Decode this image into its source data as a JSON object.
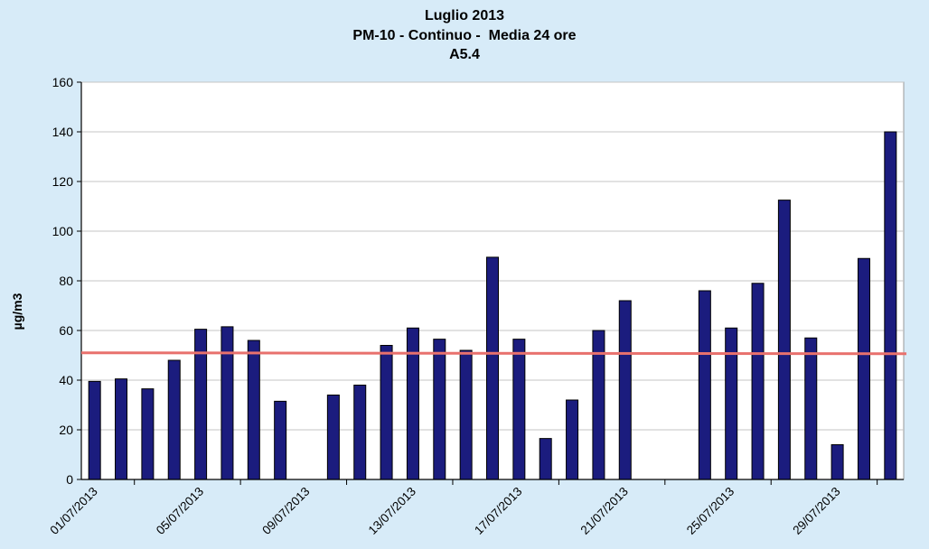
{
  "chart_data": {
    "type": "bar",
    "title": [
      "Luglio 2013",
      "PM-10 - Continuo -  Media 24 ore",
      "A5.4"
    ],
    "xlabel": "",
    "ylabel": "µg/m3",
    "ylim": [
      0,
      160
    ],
    "yticks": [
      0,
      20,
      40,
      60,
      80,
      100,
      120,
      140,
      160
    ],
    "grid": "horizontal",
    "legend": "none",
    "x": [
      "01/07/2013",
      "02/07/2013",
      "03/07/2013",
      "04/07/2013",
      "05/07/2013",
      "06/07/2013",
      "07/07/2013",
      "08/07/2013",
      "09/07/2013",
      "10/07/2013",
      "11/07/2013",
      "12/07/2013",
      "13/07/2013",
      "14/07/2013",
      "15/07/2013",
      "16/07/2013",
      "17/07/2013",
      "18/07/2013",
      "19/07/2013",
      "20/07/2013",
      "21/07/2013",
      "22/07/2013",
      "23/07/2013",
      "24/07/2013",
      "25/07/2013",
      "26/07/2013",
      "27/07/2013",
      "28/07/2013",
      "29/07/2013",
      "30/07/2013",
      "31/07/2013"
    ],
    "xticks": [
      "01/07/2013",
      "05/07/2013",
      "09/07/2013",
      "13/07/2013",
      "17/07/2013",
      "21/07/2013",
      "25/07/2013",
      "29/07/2013"
    ],
    "values": [
      39.5,
      40.5,
      36.5,
      48,
      60.5,
      61.5,
      56,
      31.5,
      null,
      34,
      38,
      54,
      61,
      56.5,
      52,
      89.5,
      56.5,
      16.5,
      32,
      60,
      72,
      null,
      null,
      76,
      61,
      79,
      112.5,
      57,
      14,
      89,
      140
    ],
    "reference_line": 51,
    "colors": {
      "background": "#d7ebf8",
      "plot_area": "#ffffff",
      "bar": "#1b1c7e",
      "bar_edge": "#000000",
      "reference_line": "#e8716d",
      "grid": "#c4c4c4"
    }
  }
}
